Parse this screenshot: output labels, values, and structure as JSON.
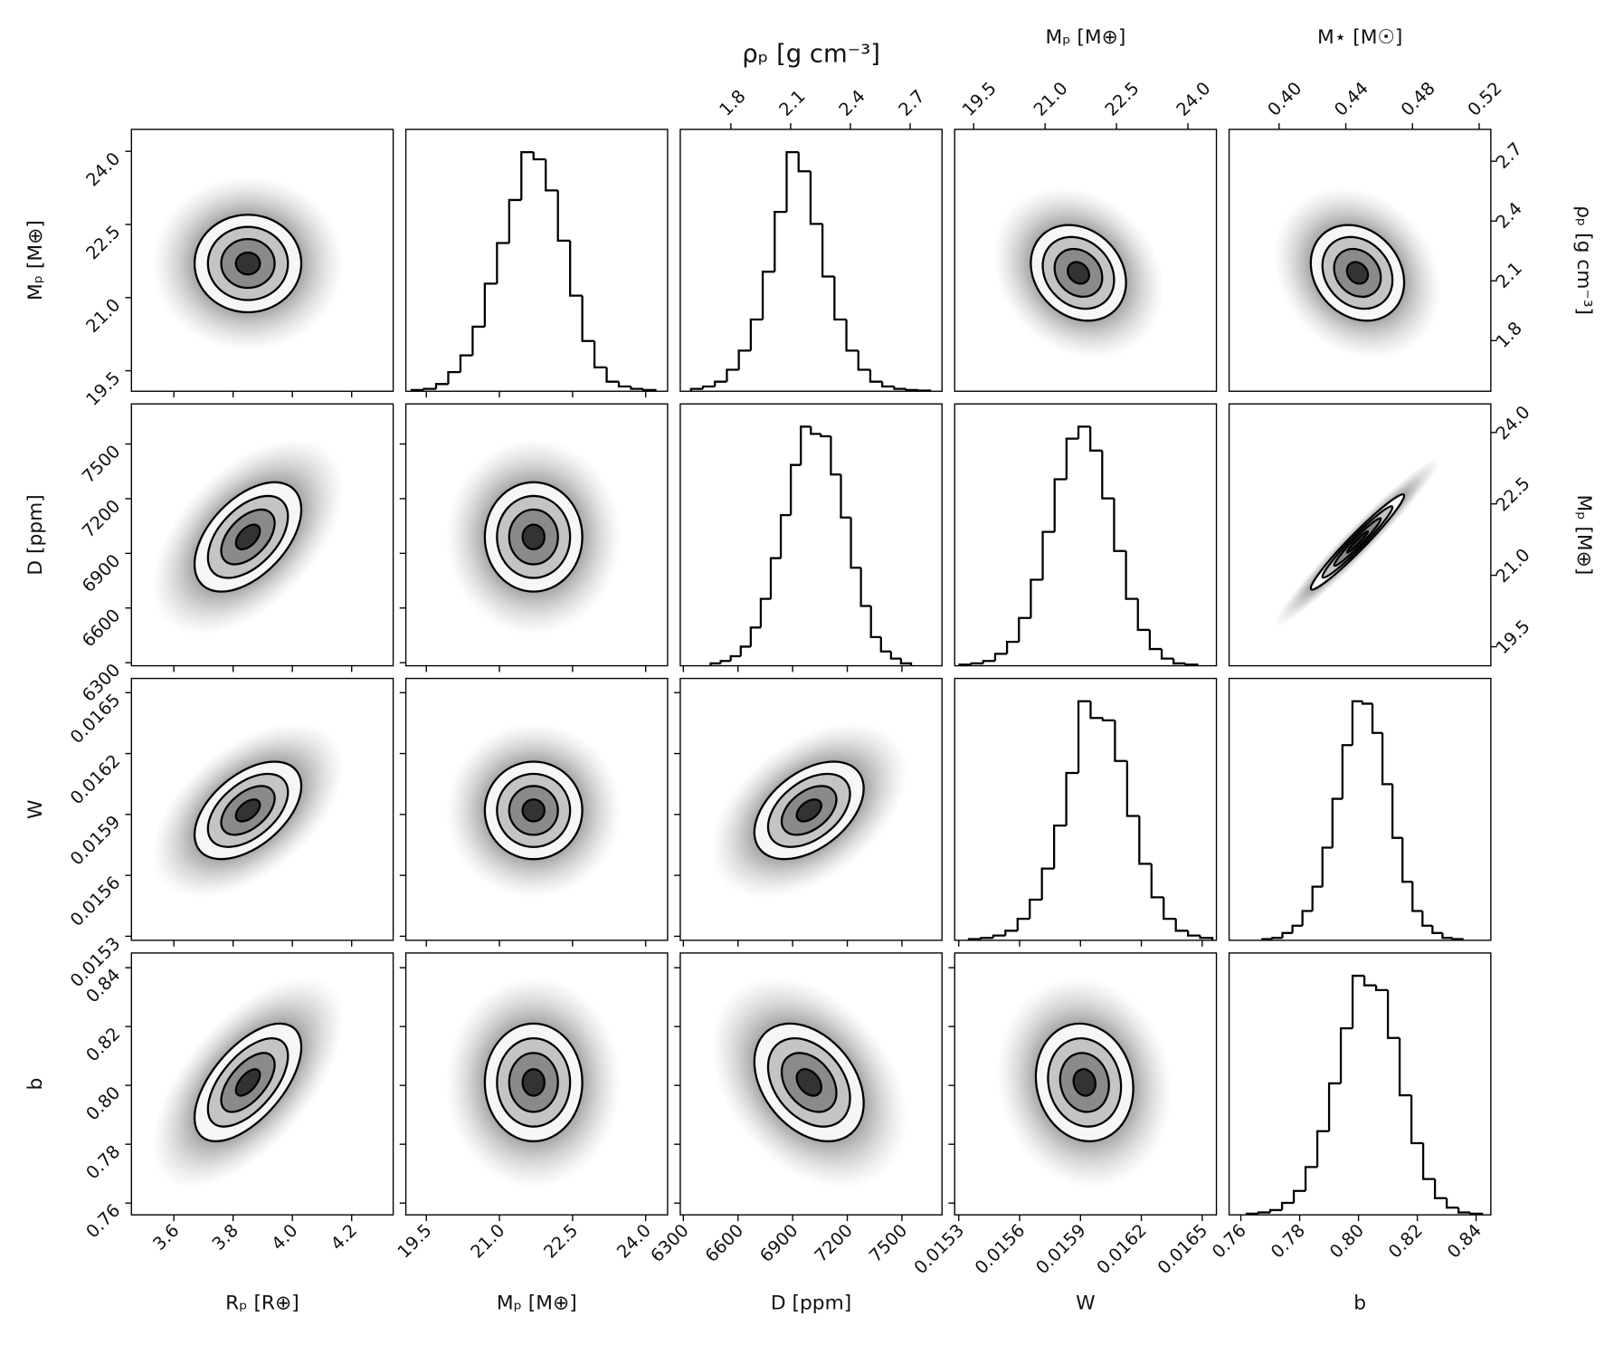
{
  "chart_data": {
    "type": "corner",
    "lower": {
      "parameters": [
        {
          "label": "Rₚ [R⊕]",
          "lim": [
            3.457,
            4.34
          ],
          "ticks": [
            3.6,
            3.8,
            {
              "value": 4.0,
              "label": "4.0"
            },
            4.2
          ],
          "mean": 3.85,
          "std": 0.09
        },
        {
          "label": "Mₚ [M⊕]",
          "lim": [
            19.08,
            24.45
          ],
          "ticks": [
            19.5,
            {
              "value": 21,
              "label": "21.0"
            },
            22.5,
            {
              "value": 24,
              "label": "24.0"
            }
          ],
          "mean": 21.7,
          "std": 0.5,
          "bins": [
            19.2,
            19.45,
            19.7,
            19.95,
            20.2,
            20.45,
            20.7,
            20.95,
            21.2,
            21.45,
            21.7,
            21.95,
            22.2,
            22.45,
            22.7,
            22.95,
            23.2,
            23.45,
            23.7,
            23.95,
            24.2
          ],
          "counts": [
            0.5,
            1,
            3,
            8,
            15,
            27,
            45,
            62,
            80,
            100,
            97,
            84,
            63,
            40,
            21,
            10,
            4,
            2,
            1,
            0.5
          ]
        },
        {
          "label": "D [ppm]",
          "lim": [
            6283,
            7720
          ],
          "ticks": [
            6300,
            6600,
            6900,
            7200,
            7500
          ],
          "mean": 6990,
          "std": 150,
          "bins": [
            6450,
            6505,
            6560,
            6615,
            6670,
            6725,
            6780,
            6835,
            6890,
            6945,
            7000,
            7055,
            7110,
            7165,
            7220,
            7275,
            7330,
            7385,
            7440,
            7495,
            7550
          ],
          "counts": [
            1,
            2,
            4,
            8,
            16,
            28,
            45,
            63,
            84,
            100,
            97,
            96,
            80,
            62,
            41,
            25,
            12,
            6,
            3,
            1
          ]
        },
        {
          "label": "W",
          "lim": [
            0.01528,
            0.01657
          ],
          "ticks": [
            0.0153,
            0.0156,
            0.0159,
            0.0162,
            0.0165
          ],
          "mean": 0.01592,
          "std": 0.00012,
          "bins": [
            0.01535,
            0.01541,
            0.01547,
            0.01553,
            0.01559,
            0.01565,
            0.01571,
            0.01577,
            0.01583,
            0.01589,
            0.01595,
            0.01601,
            0.01607,
            0.01613,
            0.01619,
            0.01625,
            0.01631,
            0.01637,
            0.01643,
            0.01649,
            0.01655
          ],
          "counts": [
            0.5,
            1,
            2,
            4,
            9,
            17,
            30,
            48,
            70,
            100,
            93,
            92,
            75,
            52,
            32,
            18,
            9,
            4,
            2,
            1
          ]
        },
        {
          "label": "b",
          "lim": [
            0.756,
            0.845
          ],
          "ticks": [
            0.76,
            0.78,
            {
              "value": 0.8,
              "label": "0.80"
            },
            0.82,
            0.84
          ],
          "mean": 0.801,
          "std": 0.01,
          "bins": [
            0.762,
            0.766,
            0.77,
            0.774,
            0.778,
            0.782,
            0.786,
            0.79,
            0.794,
            0.798,
            0.802,
            0.806,
            0.81,
            0.814,
            0.818,
            0.822,
            0.826,
            0.83,
            0.834,
            0.838,
            0.842
          ],
          "counts": [
            0.5,
            1,
            2,
            5,
            10,
            20,
            35,
            55,
            78,
            100,
            96,
            94,
            74,
            50,
            30,
            15,
            7,
            3,
            1,
            0.5
          ]
        }
      ],
      "correlation": [
        [
          1,
          0,
          0.5,
          0.5,
          0.6
        ],
        [
          0,
          1,
          0,
          0,
          0
        ],
        [
          0.5,
          0,
          1,
          0.45,
          -0.35
        ],
        [
          0.5,
          0,
          0.45,
          1,
          -0.1
        ],
        [
          0.6,
          0,
          -0.35,
          -0.1,
          1
        ]
      ]
    },
    "upper": {
      "parameters": [
        {
          "label": "ρₚ [g cm⁻³]",
          "lim": [
            1.546,
            2.86
          ],
          "ticks": [
            1.8,
            2.1,
            2.4,
            2.7
          ],
          "mean": 2.14,
          "std": 0.12,
          "bins": [
            1.6,
            1.66,
            1.72,
            1.78,
            1.84,
            1.9,
            1.96,
            2.02,
            2.08,
            2.14,
            2.2,
            2.26,
            2.32,
            2.38,
            2.44,
            2.5,
            2.56,
            2.62,
            2.68,
            2.74,
            2.8
          ],
          "counts": [
            1,
            2,
            4,
            9,
            17,
            30,
            50,
            75,
            100,
            92,
            70,
            48,
            30,
            17,
            9,
            4,
            2,
            1,
            0.5,
            0.3
          ]
        },
        {
          "label": "Mₚ [M⊕]",
          "lim": [
            19.1,
            24.6
          ],
          "ticks": [
            19.5,
            {
              "value": 21,
              "label": "21.0"
            },
            22.5,
            {
              "value": 24,
              "label": "24.0"
            }
          ],
          "mean": 21.7,
          "std": 0.5,
          "bins": [
            19.2,
            19.45,
            19.7,
            19.95,
            20.2,
            20.45,
            20.7,
            20.95,
            21.2,
            21.45,
            21.7,
            21.95,
            22.2,
            22.45,
            22.7,
            22.95,
            23.2,
            23.45,
            23.7,
            23.95,
            24.2
          ],
          "counts": [
            0.5,
            1,
            2,
            5,
            10,
            20,
            36,
            56,
            78,
            95,
            100,
            90,
            70,
            48,
            28,
            15,
            7,
            3,
            1,
            0.5
          ]
        },
        {
          "label": "M⋆ [M☉]",
          "lim": [
            0.37,
            0.527
          ],
          "ticks": [
            {
              "value": 0.4,
              "label": "0.40"
            },
            0.44,
            0.48,
            0.52
          ],
          "mean": 0.447,
          "std": 0.014,
          "bins": [
            0.39,
            0.396,
            0.402,
            0.408,
            0.414,
            0.42,
            0.426,
            0.432,
            0.438,
            0.444,
            0.45,
            0.456,
            0.462,
            0.468,
            0.474,
            0.48,
            0.486,
            0.492,
            0.498,
            0.504,
            0.51
          ],
          "counts": [
            0.5,
            1,
            3,
            6,
            12,
            22,
            38,
            58,
            80,
            98,
            97,
            85,
            64,
            42,
            24,
            12,
            6,
            3,
            1,
            0.5
          ]
        }
      ],
      "correlation": [
        [
          1,
          -0.2,
          -0.2
        ],
        [
          -0.2,
          1,
          0.97
        ],
        [
          -0.2,
          0.97,
          1
        ]
      ]
    }
  }
}
